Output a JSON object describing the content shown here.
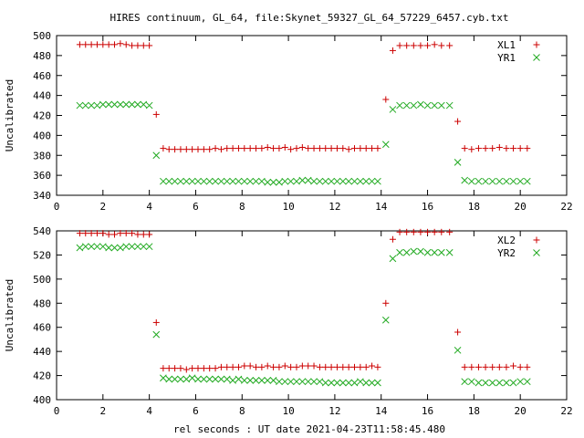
{
  "title": "HIRES continuum, GL_64, file:Skynet_59327_GL_64_57229_6457.cyb.txt",
  "xlabel": "rel seconds : UT date 2021-04-23T11:58:45.480",
  "colors": {
    "series_a": "#cc0000",
    "series_b": "#22aa22"
  },
  "chart_data": [
    {
      "type": "scatter",
      "ylabel": "Uncalibrated",
      "xlim": [
        0,
        22
      ],
      "ylim": [
        340,
        500
      ],
      "xticks": [
        0,
        2,
        4,
        6,
        8,
        10,
        12,
        14,
        16,
        18,
        20,
        22
      ],
      "yticks": [
        340,
        360,
        380,
        400,
        420,
        440,
        460,
        480,
        500
      ],
      "legend_position": "top-right",
      "grid": false,
      "series": [
        {
          "name": "XL1",
          "marker": "plus",
          "color": "#cc0000",
          "x": [
            1.0,
            1.25,
            1.5,
            1.75,
            2.0,
            2.25,
            2.5,
            2.75,
            3.0,
            3.25,
            3.5,
            3.75,
            4.0,
            4.3,
            4.6,
            4.85,
            5.1,
            5.35,
            5.6,
            5.85,
            6.1,
            6.35,
            6.6,
            6.85,
            7.1,
            7.35,
            7.6,
            7.85,
            8.1,
            8.35,
            8.6,
            8.85,
            9.1,
            9.35,
            9.6,
            9.85,
            10.1,
            10.35,
            10.6,
            10.85,
            11.1,
            11.35,
            11.6,
            11.85,
            12.1,
            12.35,
            12.6,
            12.85,
            13.1,
            13.35,
            13.6,
            13.85,
            14.2,
            14.5,
            14.8,
            15.1,
            15.4,
            15.7,
            16.0,
            16.3,
            16.6,
            16.95,
            17.3,
            17.6,
            17.9,
            18.2,
            18.5,
            18.8,
            19.1,
            19.4,
            19.7,
            20.0,
            20.3
          ],
          "y": [
            491,
            491,
            491,
            491,
            491,
            491,
            491,
            492,
            491,
            490,
            490,
            490,
            490,
            421,
            387,
            386,
            386,
            386,
            386,
            386,
            386,
            386,
            386,
            387,
            386,
            387,
            387,
            387,
            387,
            387,
            387,
            387,
            388,
            387,
            387,
            388,
            386,
            387,
            388,
            387,
            387,
            387,
            387,
            387,
            387,
            387,
            386,
            387,
            387,
            387,
            387,
            387,
            436,
            485,
            490,
            490,
            490,
            490,
            490,
            491,
            490,
            490,
            414,
            387,
            386,
            387,
            387,
            387,
            388,
            387,
            387,
            387,
            387
          ]
        },
        {
          "name": "YR1",
          "marker": "cross",
          "color": "#22aa22",
          "x": [
            1.0,
            1.25,
            1.5,
            1.75,
            2.0,
            2.25,
            2.5,
            2.75,
            3.0,
            3.25,
            3.5,
            3.75,
            4.0,
            4.3,
            4.6,
            4.85,
            5.1,
            5.35,
            5.6,
            5.85,
            6.1,
            6.35,
            6.6,
            6.85,
            7.1,
            7.35,
            7.6,
            7.85,
            8.1,
            8.35,
            8.6,
            8.85,
            9.1,
            9.35,
            9.6,
            9.85,
            10.1,
            10.35,
            10.6,
            10.85,
            11.1,
            11.35,
            11.6,
            11.85,
            12.1,
            12.35,
            12.6,
            12.85,
            13.1,
            13.35,
            13.6,
            13.85,
            14.2,
            14.5,
            14.8,
            15.1,
            15.4,
            15.7,
            16.0,
            16.3,
            16.6,
            16.95,
            17.3,
            17.6,
            17.9,
            18.2,
            18.5,
            18.8,
            19.1,
            19.4,
            19.7,
            20.0,
            20.3
          ],
          "y": [
            430,
            430,
            430,
            430,
            431,
            431,
            431,
            431,
            431,
            431,
            431,
            431,
            430,
            380,
            354,
            354,
            354,
            354,
            354,
            354,
            354,
            354,
            354,
            354,
            354,
            354,
            354,
            354,
            354,
            354,
            354,
            354,
            353,
            353,
            353,
            354,
            354,
            354,
            355,
            355,
            354,
            354,
            354,
            354,
            354,
            354,
            354,
            354,
            354,
            354,
            354,
            354,
            391,
            426,
            430,
            430,
            430,
            431,
            430,
            430,
            430,
            430,
            373,
            355,
            354,
            354,
            354,
            354,
            354,
            354,
            354,
            354,
            354
          ]
        }
      ]
    },
    {
      "type": "scatter",
      "ylabel": "Uncalibrated",
      "xlim": [
        0,
        22
      ],
      "ylim": [
        400,
        540
      ],
      "xticks": [
        0,
        2,
        4,
        6,
        8,
        10,
        12,
        14,
        16,
        18,
        20,
        22
      ],
      "yticks": [
        400,
        420,
        440,
        460,
        480,
        500,
        520,
        540
      ],
      "legend_position": "top-right",
      "grid": false,
      "series": [
        {
          "name": "XL2",
          "marker": "plus",
          "color": "#cc0000",
          "x": [
            1.0,
            1.25,
            1.5,
            1.75,
            2.0,
            2.25,
            2.5,
            2.75,
            3.0,
            3.25,
            3.5,
            3.75,
            4.0,
            4.3,
            4.6,
            4.85,
            5.1,
            5.35,
            5.6,
            5.85,
            6.1,
            6.35,
            6.6,
            6.85,
            7.1,
            7.35,
            7.6,
            7.85,
            8.1,
            8.35,
            8.6,
            8.85,
            9.1,
            9.35,
            9.6,
            9.85,
            10.1,
            10.35,
            10.6,
            10.85,
            11.1,
            11.35,
            11.6,
            11.85,
            12.1,
            12.35,
            12.6,
            12.85,
            13.1,
            13.35,
            13.6,
            13.85,
            14.2,
            14.5,
            14.8,
            15.1,
            15.4,
            15.7,
            16.0,
            16.3,
            16.6,
            16.95,
            17.3,
            17.6,
            17.9,
            18.2,
            18.5,
            18.8,
            19.1,
            19.4,
            19.7,
            20.0,
            20.3
          ],
          "y": [
            538,
            538,
            538,
            538,
            538,
            537,
            537,
            538,
            538,
            538,
            537,
            537,
            537,
            464,
            426,
            426,
            426,
            426,
            425,
            426,
            426,
            426,
            426,
            426,
            427,
            427,
            427,
            427,
            428,
            428,
            427,
            427,
            428,
            427,
            427,
            428,
            427,
            427,
            428,
            428,
            428,
            427,
            427,
            427,
            427,
            427,
            427,
            427,
            427,
            427,
            428,
            427,
            480,
            533,
            539,
            539,
            539,
            539,
            539,
            539,
            539,
            539,
            456,
            427,
            427,
            427,
            427,
            427,
            427,
            427,
            428,
            427,
            427
          ]
        },
        {
          "name": "YR2",
          "marker": "cross",
          "color": "#22aa22",
          "x": [
            1.0,
            1.25,
            1.5,
            1.75,
            2.0,
            2.25,
            2.5,
            2.75,
            3.0,
            3.25,
            3.5,
            3.75,
            4.0,
            4.3,
            4.6,
            4.85,
            5.1,
            5.35,
            5.6,
            5.85,
            6.1,
            6.35,
            6.6,
            6.85,
            7.1,
            7.35,
            7.6,
            7.85,
            8.1,
            8.35,
            8.6,
            8.85,
            9.1,
            9.35,
            9.6,
            9.85,
            10.1,
            10.35,
            10.6,
            10.85,
            11.1,
            11.35,
            11.6,
            11.85,
            12.1,
            12.35,
            12.6,
            12.85,
            13.1,
            13.35,
            13.6,
            13.85,
            14.2,
            14.5,
            14.8,
            15.1,
            15.4,
            15.7,
            16.0,
            16.3,
            16.6,
            16.95,
            17.3,
            17.6,
            17.9,
            18.2,
            18.5,
            18.8,
            19.1,
            19.4,
            19.7,
            20.0,
            20.3
          ],
          "y": [
            526,
            527,
            527,
            527,
            527,
            526,
            526,
            526,
            527,
            527,
            527,
            527,
            527,
            454,
            418,
            417,
            417,
            417,
            417,
            418,
            417,
            417,
            417,
            417,
            417,
            417,
            416,
            417,
            416,
            416,
            416,
            416,
            416,
            416,
            415,
            415,
            415,
            415,
            415,
            415,
            415,
            415,
            414,
            414,
            414,
            414,
            414,
            414,
            415,
            414,
            414,
            414,
            466,
            517,
            522,
            522,
            523,
            523,
            522,
            522,
            522,
            522,
            441,
            415,
            415,
            414,
            414,
            414,
            414,
            414,
            414,
            415,
            415
          ]
        }
      ]
    }
  ]
}
